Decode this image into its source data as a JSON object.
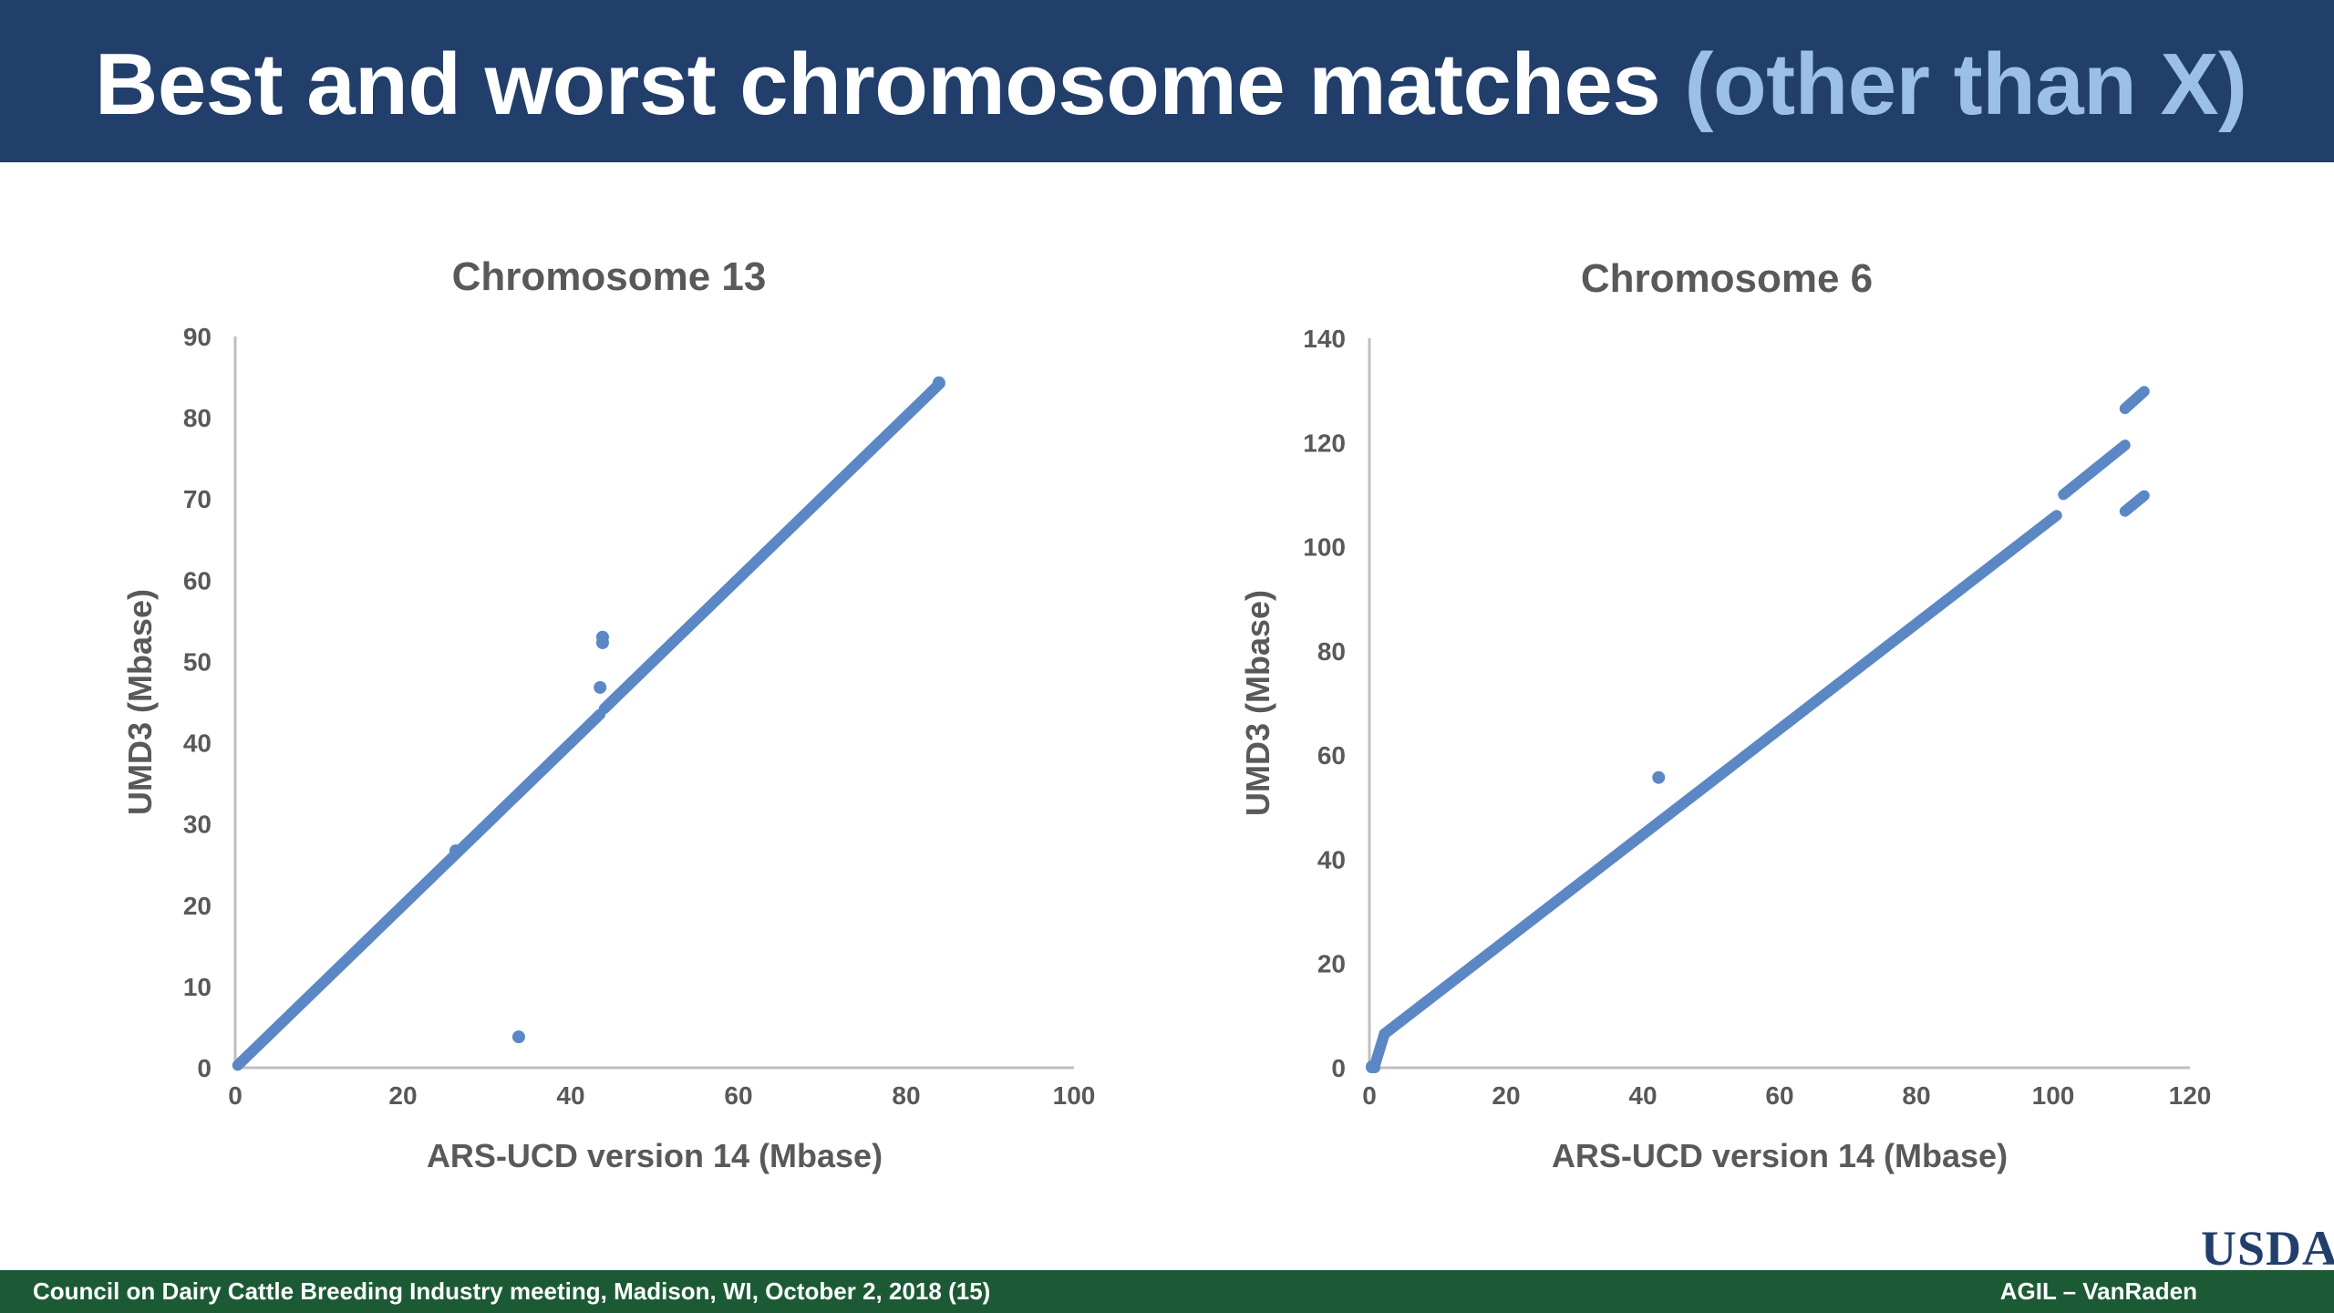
{
  "slide": {
    "title_main": "Best and worst chromosome matches",
    "title_accent": "(other than X)",
    "footer_left": "Council on Dairy Cattle Breeding Industry meeting, Madison, WI, October 2, 2018 (15)",
    "footer_right": "AGIL – VanRaden",
    "logo_text": "USDA"
  },
  "colors": {
    "title_bar": "#223f6b",
    "title_accent": "#9bbfe8",
    "footer_bar": "#1c5a36",
    "series": "#5b87c5",
    "axis": "#bfbfbf",
    "text": "#595959"
  },
  "chart_data": [
    {
      "type": "scatter",
      "title": "Chromosome 13",
      "xlabel": "ARS-UCD version 14 (Mbase)",
      "ylabel": "UMD3 (Mbase)",
      "xlim": [
        0,
        100
      ],
      "ylim": [
        0,
        90
      ],
      "xticks": [
        0,
        20,
        40,
        60,
        80,
        100
      ],
      "yticks": [
        0,
        10,
        20,
        30,
        40,
        50,
        60,
        70,
        80,
        90
      ],
      "grid": false,
      "legend": "none",
      "series": [
        {
          "segments": [
            {
              "x": [
                0.3,
                43.5
              ],
              "y": [
                0.3,
                43.5
              ]
            },
            {
              "x": [
                44,
                84
              ],
              "y": [
                44.2,
                84.2
              ]
            }
          ],
          "points": [
            {
              "x": 43.8,
              "y": 53
            },
            {
              "x": 43.8,
              "y": 52.3
            },
            {
              "x": 43.5,
              "y": 46.8
            },
            {
              "x": 33.8,
              "y": 3.8
            },
            {
              "x": 26.3,
              "y": 26.7
            },
            {
              "x": 83.9,
              "y": 84.3
            }
          ]
        }
      ]
    },
    {
      "type": "scatter",
      "title": "Chromosome 6",
      "xlabel": "ARS-UCD version 14 (Mbase)",
      "ylabel": "UMD3 (Mbase)",
      "xlim": [
        0,
        120
      ],
      "ylim": [
        0,
        140
      ],
      "xticks": [
        0,
        20,
        40,
        60,
        80,
        100,
        120
      ],
      "yticks": [
        0,
        20,
        40,
        60,
        80,
        100,
        120,
        140
      ],
      "grid": false,
      "legend": "none",
      "series": [
        {
          "segments": [
            {
              "x": [
                0.3,
                0.8
              ],
              "y": [
                0,
                0
              ]
            },
            {
              "x": [
                0.8,
                2.2
              ],
              "y": [
                0.5,
                6.5
              ]
            },
            {
              "x": [
                2.2,
                100.5
              ],
              "y": [
                6.5,
                106
              ]
            },
            {
              "x": [
                101.5,
                110.5
              ],
              "y": [
                110,
                119.5
              ]
            },
            {
              "x": [
                110.5,
                113.3
              ],
              "y": [
                106.8,
                109.8
              ]
            },
            {
              "x": [
                110.5,
                113.3
              ],
              "y": [
                126.5,
                129.8
              ]
            }
          ],
          "points": [
            {
              "x": 42.3,
              "y": 55.7
            },
            {
              "x": 0.4,
              "y": 0.2
            }
          ]
        }
      ]
    }
  ]
}
